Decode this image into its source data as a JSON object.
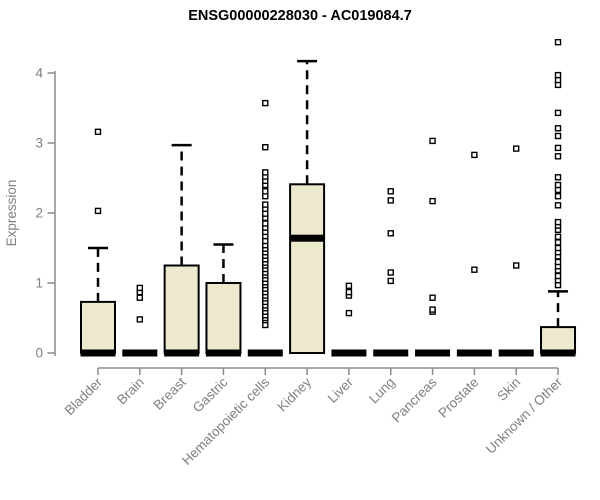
{
  "colors": {
    "background": "#ffffff",
    "title_text": "#000000",
    "axis_line": "#8b8b8b",
    "axis_text": "#808080",
    "box_border": "#000000",
    "box_fill": "#ede9cf",
    "median": "#000000",
    "outlier_stroke": "#000000",
    "outlier_fill": "#ffffff"
  },
  "chart_data": {
    "type": "boxplot",
    "title": "ENSG00000228030 - AC019084.7",
    "xlabel": "",
    "ylabel": "Expression",
    "ylim": [
      0,
      4.5
    ],
    "yticks": [
      0,
      1,
      2,
      3,
      4
    ],
    "grid": false,
    "legend": "none",
    "categories": [
      "Bladder",
      "Brain",
      "Breast",
      "Gastric",
      "Hematopoietic cells",
      "Kidney",
      "Liver",
      "Lung",
      "Pancreas",
      "Prostate",
      "Skin",
      "Unknown / Other"
    ],
    "boxes": [
      {
        "label": "Bladder",
        "q1": 0,
        "median": 0,
        "q3": 0.73,
        "whisker_low": 0,
        "whisker_high": 1.5,
        "outliers": [
          2.03,
          3.16
        ]
      },
      {
        "label": "Brain",
        "q1": 0,
        "median": 0,
        "q3": 0,
        "whisker_low": 0,
        "whisker_high": 0,
        "outliers": [
          0.48,
          0.79,
          0.87,
          0.93
        ]
      },
      {
        "label": "Breast",
        "q1": 0,
        "median": 0,
        "q3": 1.25,
        "whisker_low": 0,
        "whisker_high": 2.97,
        "outliers": []
      },
      {
        "label": "Gastric",
        "q1": 0,
        "median": 0,
        "q3": 1.0,
        "whisker_low": 0,
        "whisker_high": 1.55,
        "outliers": []
      },
      {
        "label": "Hematopoietic cells",
        "q1": 0,
        "median": 0,
        "q3": 0,
        "whisker_low": 0,
        "whisker_high": 0,
        "outliers": [
          0.4,
          0.47,
          0.5,
          0.54,
          0.59,
          0.64,
          0.68,
          0.73,
          0.78,
          0.82,
          0.87,
          0.92,
          0.97,
          1.01,
          1.06,
          1.11,
          1.15,
          1.2,
          1.25,
          1.29,
          1.34,
          1.39,
          1.44,
          1.49,
          1.54,
          1.6,
          1.67,
          1.73,
          1.79,
          1.85,
          1.93,
          1.99,
          2.06,
          2.12,
          2.24,
          2.31,
          2.4,
          2.46,
          2.52,
          2.58,
          2.94,
          3.57
        ]
      },
      {
        "label": "Kidney",
        "q1": 0,
        "median": 1.64,
        "q3": 2.41,
        "whisker_low": 0,
        "whisker_high": 4.17,
        "outliers": []
      },
      {
        "label": "Liver",
        "q1": 0,
        "median": 0,
        "q3": 0,
        "whisker_low": 0,
        "whisker_high": 0,
        "outliers": [
          0.57,
          0.82,
          0.87,
          0.96
        ]
      },
      {
        "label": "Lung",
        "q1": 0,
        "median": 0,
        "q3": 0,
        "whisker_low": 0,
        "whisker_high": 0,
        "outliers": [
          1.03,
          1.15,
          1.71,
          2.18,
          2.31
        ]
      },
      {
        "label": "Pancreas",
        "q1": 0,
        "median": 0,
        "q3": 0,
        "whisker_low": 0,
        "whisker_high": 0,
        "outliers": [
          0.59,
          0.62,
          0.79,
          2.17,
          3.03
        ]
      },
      {
        "label": "Prostate",
        "q1": 0,
        "median": 0,
        "q3": 0,
        "whisker_low": 0,
        "whisker_high": 0,
        "outliers": [
          1.19,
          2.83
        ]
      },
      {
        "label": "Skin",
        "q1": 0,
        "median": 0,
        "q3": 0,
        "whisker_low": 0,
        "whisker_high": 0,
        "outliers": [
          1.25,
          2.92
        ]
      },
      {
        "label": "Unknown / Other",
        "q1": 0,
        "median": 0,
        "q3": 0.37,
        "whisker_low": 0,
        "whisker_high": 0.88,
        "outliers": [
          0.97,
          1.04,
          1.1,
          1.18,
          1.24,
          1.3,
          1.38,
          1.44,
          1.5,
          1.58,
          1.66,
          1.76,
          1.82,
          1.87,
          2.11,
          2.24,
          2.33,
          2.4,
          2.51,
          2.81,
          2.93,
          3.1,
          3.21,
          3.43,
          3.83,
          3.9,
          3.97,
          4.44
        ]
      }
    ]
  }
}
